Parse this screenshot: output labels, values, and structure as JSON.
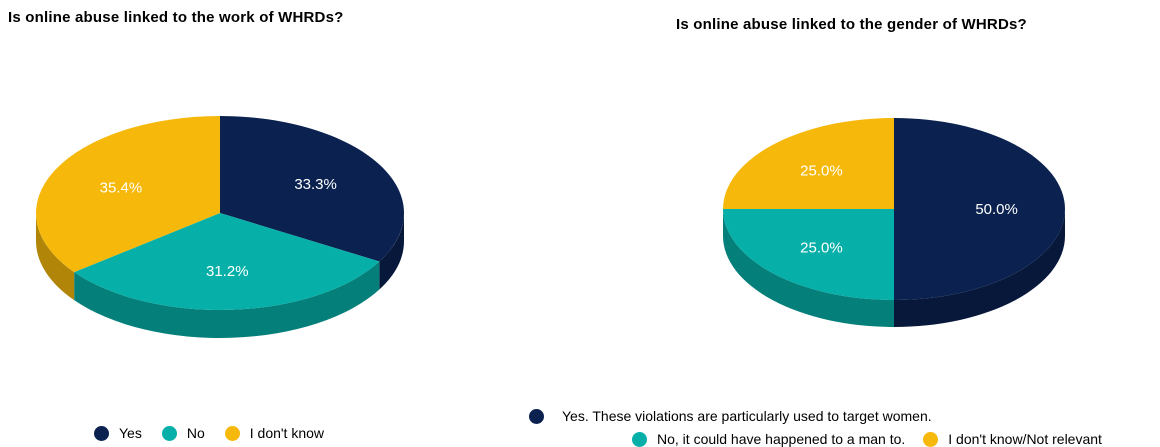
{
  "chart_data": [
    {
      "type": "pie",
      "title": "Is online abuse linked to the work of WHRDs?",
      "labels": [
        "Yes",
        "No",
        "I don't know"
      ],
      "values": [
        33.3,
        31.2,
        35.4
      ],
      "value_labels": [
        "33.3%",
        "31.2%",
        "35.4%"
      ],
      "colors": [
        "#0b2250",
        "#06b0a8",
        "#f6b90b"
      ],
      "legend": "bottom"
    },
    {
      "type": "pie",
      "title": "Is online abuse linked to the gender of WHRDs?",
      "labels": [
        "Yes. These violations are particularly used to target women.",
        "No, it could have happened to a man to.",
        "I don't know/Not relevant"
      ],
      "values": [
        50.0,
        25.0,
        25.0
      ],
      "value_labels": [
        "50.0%",
        "25.0%",
        "25.0%"
      ],
      "colors": [
        "#0b2250",
        "#06b0a8",
        "#f6b90b"
      ],
      "legend": "bottom"
    }
  ]
}
